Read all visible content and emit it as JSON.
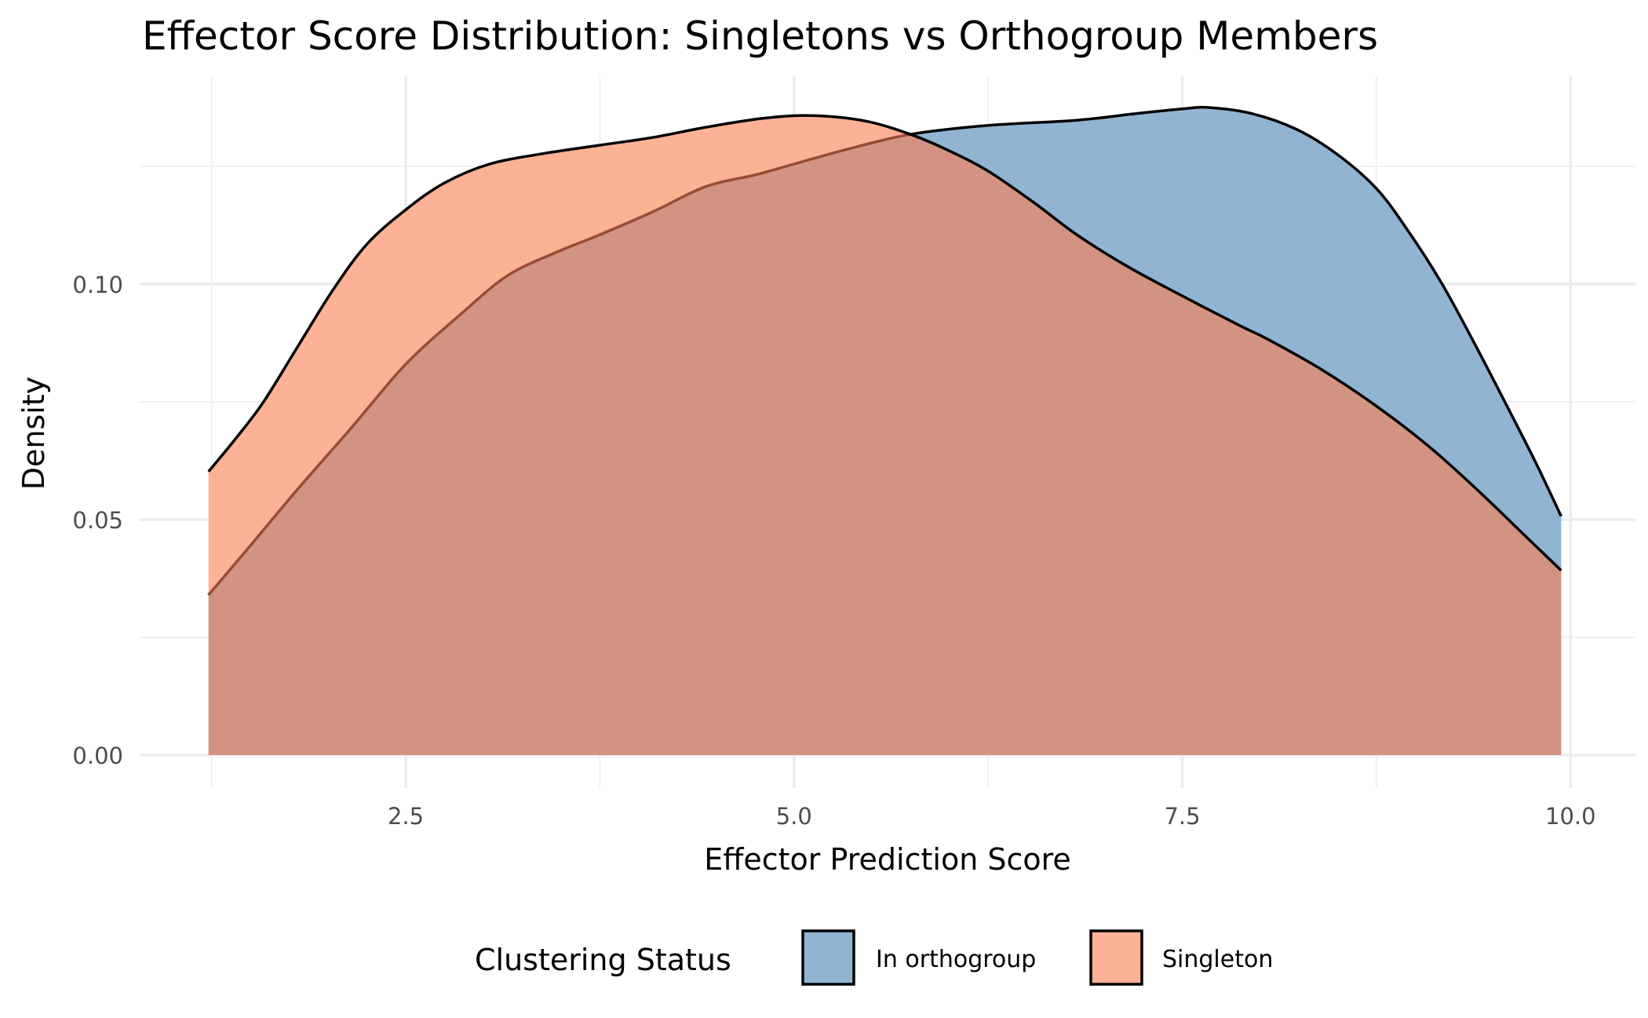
{
  "chart_data": {
    "type": "area",
    "subtype": "density",
    "title": "Effector Score Distribution: Singletons vs Orthogroup Members",
    "xlabel": "Effector Prediction Score",
    "ylabel": "Density",
    "xlim": [
      0.87,
      10.37
    ],
    "ylim": [
      -0.007,
      0.145
    ],
    "x_ticks": [
      2.5,
      5.0,
      7.5,
      10.0
    ],
    "x_tick_labels": [
      "2.5",
      "5.0",
      "7.5",
      "10.0"
    ],
    "x_minor_ticks": [
      1.25,
      3.75,
      6.25,
      8.75
    ],
    "y_ticks": [
      0.0,
      0.05,
      0.1
    ],
    "y_tick_labels": [
      "0.00",
      "0.05",
      "0.10"
    ],
    "y_minor_ticks": [
      0.025,
      0.075,
      0.125
    ],
    "grid": true,
    "legend": {
      "title": "Clustering Status",
      "position": "bottom",
      "entries": [
        "In orthogroup",
        "Singleton"
      ]
    },
    "series": [
      {
        "name": "In orthogroup",
        "color": "#92b4d3",
        "points": [
          [
            1.23,
            0.034
          ],
          [
            1.5,
            0.0445
          ],
          [
            1.8,
            0.0563
          ],
          [
            2.15,
            0.0695
          ],
          [
            2.5,
            0.083
          ],
          [
            2.85,
            0.0935
          ],
          [
            3.15,
            0.1017
          ],
          [
            3.45,
            0.1065
          ],
          [
            3.75,
            0.1105
          ],
          [
            4.1,
            0.1155
          ],
          [
            4.43,
            0.1207
          ],
          [
            4.75,
            0.1232
          ],
          [
            5.0,
            0.1255
          ],
          [
            5.35,
            0.1287
          ],
          [
            5.75,
            0.1318
          ],
          [
            6.25,
            0.1337
          ],
          [
            6.82,
            0.1348
          ],
          [
            7.2,
            0.1362
          ],
          [
            7.5,
            0.1372
          ],
          [
            7.67,
            0.1375
          ],
          [
            7.95,
            0.1362
          ],
          [
            8.24,
            0.1328
          ],
          [
            8.5,
            0.1275
          ],
          [
            8.75,
            0.1203
          ],
          [
            8.95,
            0.1115
          ],
          [
            9.17,
            0.1002
          ],
          [
            9.38,
            0.0875
          ],
          [
            9.58,
            0.0748
          ],
          [
            9.77,
            0.0625
          ],
          [
            9.94,
            0.0507
          ]
        ]
      },
      {
        "name": "Singleton",
        "color": "#fdb195",
        "points": [
          [
            1.23,
            0.0602
          ],
          [
            1.4,
            0.067
          ],
          [
            1.58,
            0.0748
          ],
          [
            1.8,
            0.0865
          ],
          [
            2.03,
            0.0987
          ],
          [
            2.25,
            0.1085
          ],
          [
            2.5,
            0.1158
          ],
          [
            2.75,
            0.1215
          ],
          [
            3.04,
            0.1255
          ],
          [
            3.4,
            0.1278
          ],
          [
            3.75,
            0.1295
          ],
          [
            4.1,
            0.1312
          ],
          [
            4.43,
            0.1333
          ],
          [
            4.8,
            0.1352
          ],
          [
            5.11,
            0.1358
          ],
          [
            5.45,
            0.1347
          ],
          [
            5.75,
            0.1318
          ],
          [
            6.0,
            0.1283
          ],
          [
            6.25,
            0.124
          ],
          [
            6.55,
            0.1172
          ],
          [
            6.82,
            0.1105
          ],
          [
            7.15,
            0.1037
          ],
          [
            7.5,
            0.0975
          ],
          [
            7.87,
            0.0912
          ],
          [
            8.05,
            0.0883
          ],
          [
            8.4,
            0.0818
          ],
          [
            8.75,
            0.0741
          ],
          [
            9.1,
            0.0652
          ],
          [
            9.4,
            0.0563
          ],
          [
            9.7,
            0.0468
          ],
          [
            9.94,
            0.0392
          ]
        ]
      }
    ]
  },
  "colors": {
    "overlap": "#d39383",
    "inner_outline": "#9a4b34",
    "outline": "#000000",
    "grid": "#ebebeb"
  }
}
